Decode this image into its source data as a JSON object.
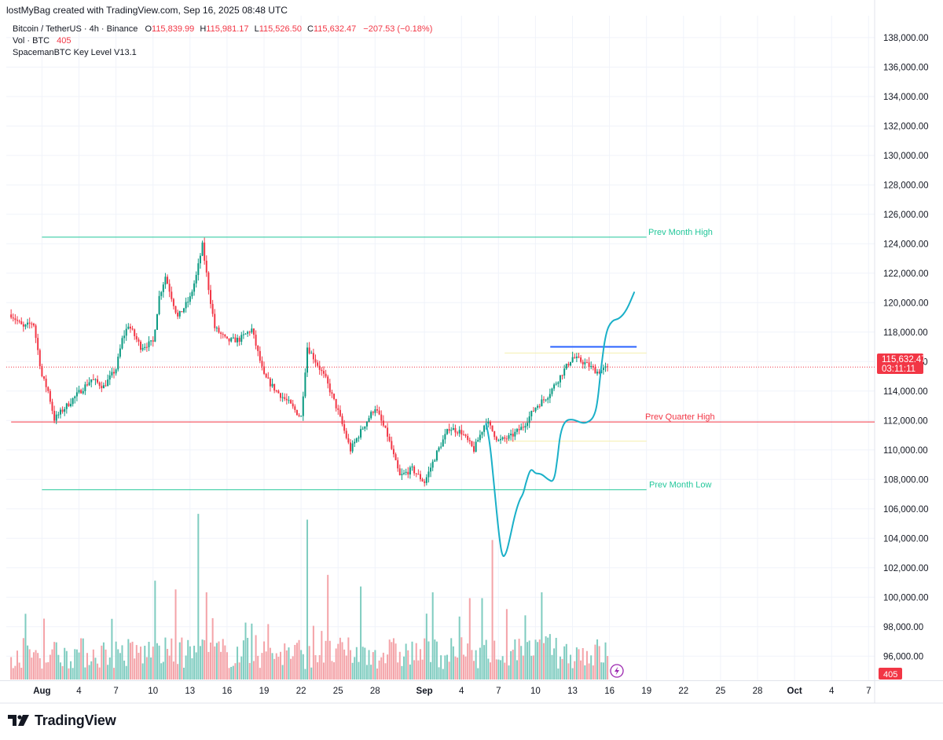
{
  "header": {
    "text": "lostMyBag created with TradingView.com, Sep 16, 2025 08:48 UTC"
  },
  "legend": {
    "symbol": "Bitcoin / TetherUS · 4h · Binance",
    "o_label": "O",
    "o_val": "115,839.99",
    "h_label": "H",
    "h_val": "115,981.17",
    "l_label": "L",
    "l_val": "115,526.50",
    "c_label": "C",
    "c_val": "115,632.47",
    "chg": "−207.53 (−0.18%)",
    "vol_label": "Vol · BTC",
    "vol_val": "405",
    "indicator": "SpacemanBTC Key Level V13.1"
  },
  "price_badge": {
    "price": "115,632.47",
    "countdown": "03:11:11"
  },
  "volume_badge": "405",
  "logo": {
    "text": "TradingView",
    "icon": "tradingview-logo-icon"
  },
  "chart_data": {
    "type": "candlestick",
    "symbol": "BTCUSDT",
    "timeframe": "4h",
    "price_range": [
      94500,
      138700
    ],
    "y_ticks": [
      {
        "v": 96000,
        "label": "96,000.00"
      },
      {
        "v": 98000,
        "label": "98,000.00"
      },
      {
        "v": 100000,
        "label": "100,000.00"
      },
      {
        "v": 102000,
        "label": "102,000.00"
      },
      {
        "v": 104000,
        "label": "104,000.00"
      },
      {
        "v": 106000,
        "label": "106,000.00"
      },
      {
        "v": 108000,
        "label": "108,000.00"
      },
      {
        "v": 110000,
        "label": "110,000.00"
      },
      {
        "v": 112000,
        "label": "112,000.00"
      },
      {
        "v": 114000,
        "label": "114,000.00"
      },
      {
        "v": 116000,
        "label": "116,000.00"
      },
      {
        "v": 118000,
        "label": "118,000.00"
      },
      {
        "v": 120000,
        "label": "120,000.00"
      },
      {
        "v": 122000,
        "label": "122,000.00"
      },
      {
        "v": 124000,
        "label": "124,000.00"
      },
      {
        "v": 126000,
        "label": "126,000.00"
      },
      {
        "v": 128000,
        "label": "128,000.00"
      },
      {
        "v": 130000,
        "label": "130,000.00"
      },
      {
        "v": 132000,
        "label": "132,000.00"
      },
      {
        "v": 134000,
        "label": "134,000.00"
      },
      {
        "v": 136000,
        "label": "136,000.00"
      },
      {
        "v": 138000,
        "label": "138,000.00"
      }
    ],
    "x_ticks": [
      {
        "day": 1,
        "label": "Aug",
        "bold": true
      },
      {
        "day": 4,
        "label": "4"
      },
      {
        "day": 7,
        "label": "7"
      },
      {
        "day": 10,
        "label": "10"
      },
      {
        "day": 13,
        "label": "13"
      },
      {
        "day": 16,
        "label": "16"
      },
      {
        "day": 19,
        "label": "19"
      },
      {
        "day": 22,
        "label": "22"
      },
      {
        "day": 25,
        "label": "25"
      },
      {
        "day": 28,
        "label": "28"
      },
      {
        "day": 32,
        "label": "Sep",
        "bold": true
      },
      {
        "day": 35,
        "label": "4"
      },
      {
        "day": 38,
        "label": "7"
      },
      {
        "day": 41,
        "label": "10"
      },
      {
        "day": 44,
        "label": "13"
      },
      {
        "day": 47,
        "label": "16"
      },
      {
        "day": 50,
        "label": "19"
      },
      {
        "day": 53,
        "label": "22"
      },
      {
        "day": 56,
        "label": "25"
      },
      {
        "day": 59,
        "label": "28"
      },
      {
        "day": 62,
        "label": "Oct",
        "bold": true
      },
      {
        "day": 65,
        "label": "4"
      },
      {
        "day": 68,
        "label": "7"
      }
    ],
    "price_path": [
      [
        -1.5,
        119200
      ],
      [
        -0.5,
        118300
      ],
      [
        0.3,
        118700
      ],
      [
        1,
        115000
      ],
      [
        1.5,
        114000
      ],
      [
        2,
        112100
      ],
      [
        3,
        113000
      ],
      [
        4,
        113900
      ],
      [
        5,
        114800
      ],
      [
        6,
        114300
      ],
      [
        7,
        115500
      ],
      [
        7.5,
        117500
      ],
      [
        8,
        118500
      ],
      [
        9,
        117000
      ],
      [
        10,
        117300
      ],
      [
        10.5,
        120400
      ],
      [
        11,
        121800
      ],
      [
        12,
        119000
      ],
      [
        13,
        120300
      ],
      [
        13.5,
        121800
      ],
      [
        14,
        123900
      ],
      [
        14.5,
        121000
      ],
      [
        15,
        118300
      ],
      [
        16,
        117400
      ],
      [
        17,
        117500
      ],
      [
        18,
        118200
      ],
      [
        19,
        115000
      ],
      [
        20,
        114000
      ],
      [
        21,
        113200
      ],
      [
        22,
        112200
      ],
      [
        22.5,
        117000
      ],
      [
        23,
        116300
      ],
      [
        24,
        114800
      ],
      [
        25,
        112600
      ],
      [
        26,
        110000
      ],
      [
        27,
        111500
      ],
      [
        28,
        112900
      ],
      [
        29,
        111000
      ],
      [
        30,
        108200
      ],
      [
        31,
        108700
      ],
      [
        32,
        107800
      ],
      [
        33,
        109800
      ],
      [
        34,
        111500
      ],
      [
        35,
        111200
      ],
      [
        36,
        110000
      ],
      [
        37,
        112000
      ],
      [
        38,
        110600
      ],
      [
        39,
        110900
      ],
      [
        40,
        111600
      ],
      [
        41,
        112900
      ],
      [
        42,
        113700
      ],
      [
        43,
        115000
      ],
      [
        44,
        116300
      ],
      [
        45,
        115900
      ],
      [
        46,
        115300
      ],
      [
        47,
        115632
      ]
    ],
    "candle_step_days": 0.1667,
    "forecast_path": [
      [
        37.0,
        111800
      ],
      [
        37.3,
        110500
      ],
      [
        37.6,
        108000
      ],
      [
        38.0,
        104500
      ],
      [
        38.3,
        102700
      ],
      [
        38.6,
        102900
      ],
      [
        38.9,
        103900
      ],
      [
        39.3,
        105500
      ],
      [
        39.7,
        106600
      ],
      [
        40.0,
        107000
      ],
      [
        40.2,
        107700
      ],
      [
        40.5,
        108500
      ],
      [
        40.7,
        108700
      ],
      [
        41.0,
        108400
      ],
      [
        41.3,
        108400
      ],
      [
        41.6,
        108300
      ],
      [
        42.0,
        108000
      ],
      [
        42.5,
        107800
      ],
      [
        42.8,
        109500
      ],
      [
        43.0,
        111100
      ],
      [
        43.4,
        112000
      ],
      [
        44.0,
        112100
      ],
      [
        44.8,
        111800
      ],
      [
        45.3,
        111900
      ],
      [
        45.7,
        112200
      ],
      [
        46.0,
        113000
      ],
      [
        46.3,
        115500
      ],
      [
        46.7,
        118000
      ],
      [
        47.2,
        118800
      ],
      [
        47.8,
        118900
      ],
      [
        48.4,
        119500
      ],
      [
        49.0,
        120700
      ]
    ],
    "key_levels": [
      {
        "name": "Prev Month High",
        "value": 124450,
        "from_day": 1,
        "to_day": 50,
        "color": "#22c79a",
        "show_label": true
      },
      {
        "name": "Prev Month Low",
        "value": 107300,
        "from_day": 1,
        "to_day": 50,
        "color": "#22c79a",
        "show_label": true
      },
      {
        "name": "Prev Quarter High",
        "value": 111900,
        "from_day": -1.5,
        "to_day": 69,
        "color": "#f23645",
        "show_label": true,
        "thin": true
      },
      {
        "name": "Prev Week High",
        "value": 116580,
        "from_day": 38.5,
        "to_day": 50,
        "color": "#f5f0b0",
        "show_label": false
      },
      {
        "name": "Prev Week Low",
        "value": 110600,
        "from_day": 38.5,
        "to_day": 50,
        "color": "#f5f0b0",
        "show_label": false
      },
      {
        "name": "Weekly Open",
        "value": 117000,
        "from_day": 42.2,
        "to_day": 49.2,
        "color": "#2962ff",
        "show_label": false
      }
    ],
    "last_price": 115632.47,
    "volume": {
      "last": 405,
      "spikes": [
        {
          "day": 13.6,
          "size": 2.85
        },
        {
          "day": 22.5,
          "size": 2.75
        },
        {
          "day": 37.5,
          "size": 2.4
        },
        {
          "day": 24.2,
          "size": 1.8
        },
        {
          "day": 10.2,
          "size": 1.7
        },
        {
          "day": 26.8,
          "size": 1.6
        },
        {
          "day": 11.8,
          "size": 1.55
        },
        {
          "day": 32.6,
          "size": 1.5
        },
        {
          "day": 41.5,
          "size": 1.5
        },
        {
          "day": 35.6,
          "size": 1.4
        },
        {
          "day": 36.7,
          "size": 1.4
        },
        {
          "day": 14.3,
          "size": 1.5
        }
      ]
    },
    "colors": {
      "up": "#089981",
      "down": "#f23645",
      "forecast": "#1ab0c8",
      "vol_up": "#7fccc0",
      "vol_down": "#f4a3a8"
    },
    "grid": true
  }
}
